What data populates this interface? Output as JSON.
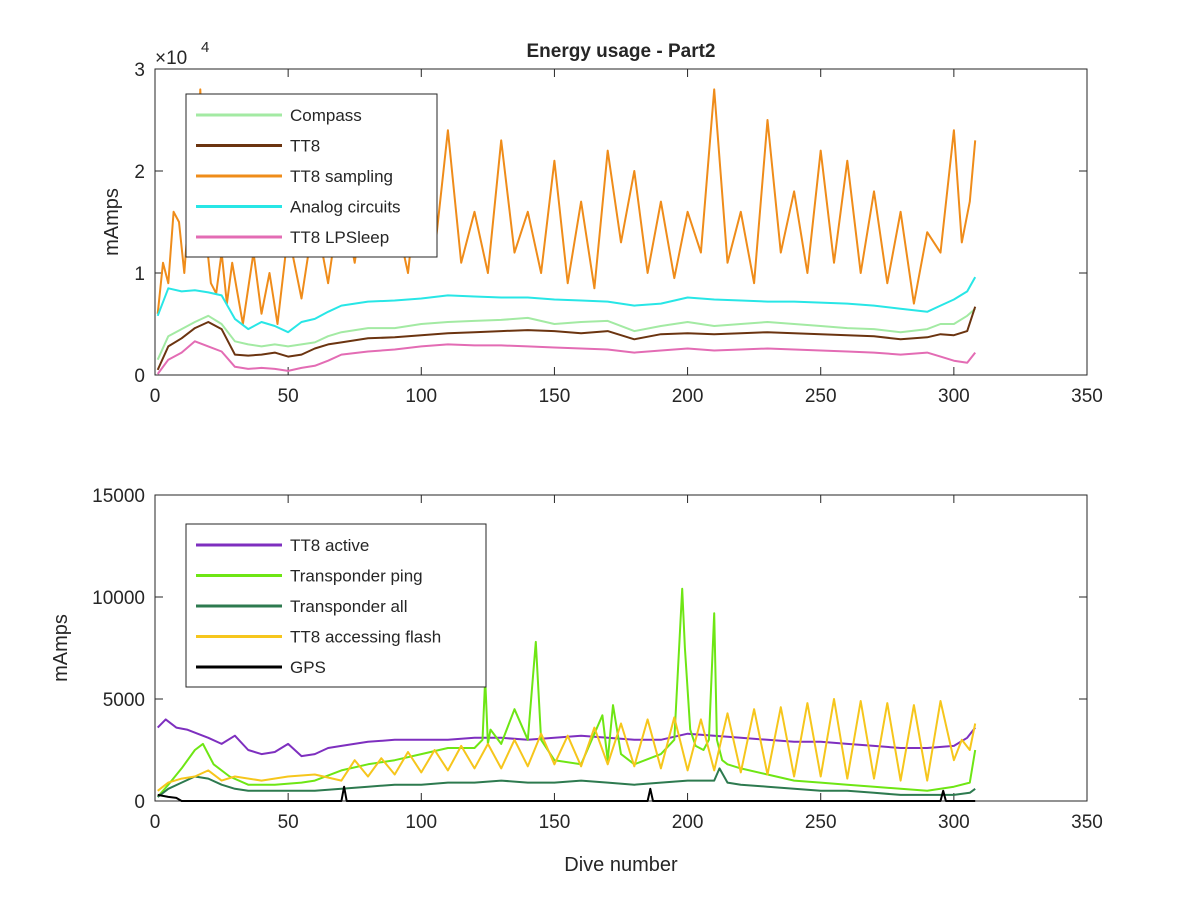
{
  "chart_data": [
    {
      "type": "line",
      "title": "Energy usage - Part2",
      "xlabel": "",
      "ylabel": "mAmps",
      "xlim": [
        0,
        350
      ],
      "ylim": [
        0,
        30000
      ],
      "x_ticks": [
        0,
        50,
        100,
        150,
        200,
        250,
        300,
        350
      ],
      "y_ticks": [
        0,
        10000,
        20000,
        30000
      ],
      "y_tick_labels": [
        "0",
        "1",
        "2",
        "3"
      ],
      "exponent_label": "×10",
      "exponent_power": "4",
      "grid": false,
      "legend_position": "top-left",
      "series": [
        {
          "name": "Compass",
          "color": "#a3eaa3",
          "x": [
            1,
            5,
            10,
            15,
            20,
            25,
            30,
            35,
            40,
            45,
            50,
            55,
            60,
            65,
            70,
            80,
            90,
            100,
            110,
            120,
            130,
            140,
            150,
            160,
            170,
            180,
            190,
            200,
            210,
            220,
            230,
            240,
            250,
            260,
            270,
            280,
            290,
            295,
            300,
            305,
            308
          ],
          "y": [
            1500,
            3800,
            4500,
            5200,
            5800,
            5000,
            3300,
            3000,
            2800,
            3000,
            2800,
            3000,
            3200,
            3800,
            4200,
            4600,
            4600,
            5000,
            5200,
            5300,
            5400,
            5600,
            5000,
            5200,
            5300,
            4300,
            4800,
            5200,
            4800,
            5000,
            5200,
            5000,
            4800,
            4600,
            4500,
            4200,
            4500,
            5000,
            5000,
            5800,
            6500
          ]
        },
        {
          "name": "TT8",
          "color": "#6b3410",
          "x": [
            1,
            5,
            10,
            15,
            20,
            25,
            30,
            35,
            40,
            45,
            50,
            55,
            60,
            65,
            70,
            80,
            90,
            100,
            110,
            120,
            130,
            140,
            150,
            160,
            170,
            180,
            190,
            200,
            210,
            220,
            230,
            240,
            250,
            260,
            270,
            280,
            290,
            295,
            300,
            305,
            308
          ],
          "y": [
            500,
            2800,
            3600,
            4600,
            5200,
            4500,
            2000,
            1900,
            2000,
            2200,
            1800,
            2000,
            2600,
            3000,
            3200,
            3600,
            3700,
            3900,
            4100,
            4200,
            4300,
            4400,
            4300,
            4100,
            4300,
            3500,
            4000,
            4100,
            4000,
            4100,
            4200,
            4100,
            4000,
            3900,
            3800,
            3500,
            3700,
            4000,
            3900,
            4300,
            6700
          ]
        },
        {
          "name": "TT8 sampling",
          "color": "#ef8c1a",
          "x": [
            1,
            3,
            5,
            7,
            9,
            11,
            13,
            15,
            17,
            19,
            21,
            23,
            25,
            27,
            29,
            31,
            33,
            35,
            37,
            40,
            43,
            46,
            50,
            55,
            60,
            65,
            70,
            75,
            80,
            85,
            90,
            95,
            100,
            105,
            110,
            115,
            120,
            125,
            130,
            135,
            140,
            145,
            150,
            155,
            160,
            165,
            170,
            175,
            180,
            185,
            190,
            195,
            200,
            205,
            210,
            215,
            220,
            225,
            230,
            235,
            240,
            245,
            250,
            255,
            260,
            265,
            270,
            275,
            280,
            285,
            290,
            295,
            300,
            303,
            306,
            308
          ],
          "y": [
            6000,
            11000,
            9000,
            16000,
            15000,
            10000,
            17000,
            13000,
            28000,
            14000,
            9000,
            8000,
            12000,
            7000,
            11000,
            8000,
            5000,
            8500,
            12000,
            6000,
            10000,
            5000,
            14000,
            7500,
            16000,
            9000,
            18000,
            11000,
            20000,
            12000,
            16000,
            10000,
            22000,
            12000,
            24000,
            11000,
            16000,
            10000,
            23000,
            12000,
            16000,
            10000,
            21000,
            9000,
            17000,
            8500,
            22000,
            13000,
            20000,
            10000,
            17000,
            9500,
            16000,
            12000,
            28000,
            11000,
            16000,
            9000,
            25000,
            12000,
            18000,
            10000,
            22000,
            11000,
            21000,
            10000,
            18000,
            9000,
            16000,
            7000,
            14000,
            12000,
            24000,
            13000,
            17000,
            23000
          ]
        },
        {
          "name": "Analog circuits",
          "color": "#28e6e6",
          "x": [
            1,
            5,
            10,
            15,
            20,
            25,
            30,
            35,
            40,
            45,
            50,
            55,
            60,
            65,
            70,
            80,
            90,
            100,
            110,
            120,
            130,
            140,
            150,
            160,
            170,
            180,
            190,
            200,
            210,
            220,
            230,
            240,
            250,
            260,
            270,
            280,
            290,
            295,
            300,
            305,
            308
          ],
          "y": [
            5800,
            8500,
            8200,
            8300,
            8100,
            7800,
            5500,
            4500,
            5200,
            4800,
            4200,
            5200,
            5500,
            6200,
            6800,
            7200,
            7300,
            7500,
            7800,
            7700,
            7600,
            7600,
            7400,
            7300,
            7200,
            6800,
            7000,
            7600,
            7400,
            7300,
            7200,
            7200,
            7100,
            7000,
            6800,
            6500,
            6200,
            6800,
            7400,
            8200,
            9600
          ]
        },
        {
          "name": "TT8 LPSleep",
          "color": "#e36cb4",
          "x": [
            1,
            5,
            10,
            15,
            20,
            25,
            30,
            35,
            40,
            45,
            50,
            55,
            60,
            65,
            70,
            80,
            90,
            100,
            110,
            120,
            130,
            140,
            150,
            160,
            170,
            180,
            190,
            200,
            210,
            220,
            230,
            240,
            250,
            260,
            270,
            280,
            290,
            295,
            300,
            305,
            308
          ],
          "y": [
            100,
            1500,
            2200,
            3300,
            2800,
            2300,
            800,
            600,
            700,
            600,
            400,
            700,
            900,
            1400,
            2000,
            2300,
            2500,
            2800,
            3000,
            2900,
            2900,
            2800,
            2700,
            2600,
            2500,
            2200,
            2400,
            2600,
            2400,
            2500,
            2600,
            2500,
            2400,
            2300,
            2200,
            2000,
            2200,
            1800,
            1400,
            1200,
            2200
          ]
        }
      ]
    },
    {
      "type": "line",
      "title": "",
      "xlabel": "Dive number",
      "ylabel": "mAmps",
      "xlim": [
        0,
        350
      ],
      "ylim": [
        0,
        15000
      ],
      "x_ticks": [
        0,
        50,
        100,
        150,
        200,
        250,
        300,
        350
      ],
      "y_ticks": [
        0,
        5000,
        10000,
        15000
      ],
      "y_tick_labels": [
        "0",
        "5000",
        "10000",
        "15000"
      ],
      "grid": false,
      "legend_position": "top-left",
      "series": [
        {
          "name": "TT8 active",
          "color": "#7e2fbf",
          "x": [
            1,
            4,
            8,
            12,
            16,
            20,
            25,
            30,
            35,
            40,
            45,
            50,
            55,
            60,
            65,
            70,
            80,
            90,
            100,
            110,
            120,
            130,
            140,
            150,
            160,
            170,
            180,
            190,
            200,
            210,
            220,
            230,
            240,
            250,
            260,
            270,
            280,
            290,
            300,
            305,
            308
          ],
          "y": [
            3600,
            4000,
            3600,
            3500,
            3300,
            3100,
            2800,
            3200,
            2500,
            2300,
            2400,
            2800,
            2200,
            2300,
            2600,
            2700,
            2900,
            3000,
            3000,
            3000,
            3100,
            3100,
            3000,
            3100,
            3200,
            3100,
            3000,
            3000,
            3300,
            3200,
            3100,
            3000,
            2900,
            2900,
            2800,
            2700,
            2600,
            2600,
            2700,
            3100,
            3600
          ]
        },
        {
          "name": "Transponder ping",
          "color": "#6ee614",
          "x": [
            1,
            5,
            10,
            15,
            18,
            22,
            28,
            35,
            45,
            55,
            60,
            70,
            80,
            90,
            100,
            110,
            120,
            123,
            124,
            125,
            126,
            130,
            135,
            140,
            143,
            145,
            150,
            160,
            168,
            170,
            172,
            175,
            180,
            190,
            195,
            198,
            199,
            201,
            203,
            206,
            208,
            210,
            211,
            213,
            215,
            220,
            230,
            240,
            250,
            260,
            270,
            280,
            290,
            300,
            306,
            308
          ],
          "y": [
            200,
            800,
            1600,
            2500,
            2800,
            1800,
            1200,
            800,
            800,
            900,
            1000,
            1500,
            1800,
            2000,
            2300,
            2600,
            2600,
            3000,
            6000,
            2800,
            3500,
            2800,
            4500,
            3000,
            7800,
            3000,
            2000,
            1800,
            4200,
            2000,
            4700,
            2300,
            1800,
            2300,
            3000,
            10400,
            7500,
            3500,
            2700,
            2500,
            3000,
            9200,
            3000,
            2000,
            1800,
            1600,
            1300,
            1000,
            900,
            800,
            700,
            600,
            500,
            700,
            900,
            2500
          ]
        },
        {
          "name": "Transponder all",
          "color": "#2d7a4f",
          "x": [
            1,
            5,
            10,
            15,
            20,
            25,
            30,
            35,
            40,
            50,
            60,
            70,
            80,
            90,
            100,
            110,
            120,
            130,
            140,
            150,
            160,
            170,
            180,
            190,
            200,
            210,
            212,
            215,
            220,
            230,
            240,
            250,
            260,
            270,
            280,
            290,
            300,
            306,
            308
          ],
          "y": [
            200,
            600,
            900,
            1200,
            1100,
            800,
            600,
            500,
            500,
            500,
            500,
            600,
            700,
            800,
            800,
            900,
            900,
            1000,
            900,
            900,
            1000,
            900,
            800,
            900,
            1000,
            1000,
            1600,
            900,
            800,
            700,
            600,
            500,
            500,
            400,
            300,
            300,
            300,
            400,
            600
          ]
        },
        {
          "name": "TT8 accessing flash",
          "color": "#f6c61c",
          "x": [
            1,
            5,
            10,
            15,
            20,
            25,
            30,
            40,
            50,
            60,
            70,
            75,
            80,
            85,
            90,
            95,
            100,
            105,
            110,
            115,
            120,
            125,
            130,
            135,
            140,
            145,
            150,
            155,
            160,
            165,
            170,
            175,
            180,
            185,
            190,
            195,
            200,
            205,
            210,
            215,
            220,
            225,
            230,
            235,
            240,
            245,
            250,
            255,
            260,
            265,
            270,
            275,
            280,
            285,
            290,
            295,
            300,
            303,
            306,
            308
          ],
          "y": [
            500,
            900,
            1100,
            1200,
            1500,
            1000,
            1200,
            1000,
            1200,
            1300,
            1000,
            2000,
            1200,
            2100,
            1300,
            2400,
            1400,
            2500,
            1500,
            2700,
            1600,
            2800,
            1600,
            3000,
            1700,
            3300,
            1800,
            3200,
            1700,
            3600,
            1800,
            3800,
            1700,
            4000,
            1600,
            4100,
            1500,
            4000,
            1500,
            4300,
            1400,
            4500,
            1300,
            4600,
            1200,
            4800,
            1200,
            5000,
            1100,
            4900,
            1100,
            4800,
            1000,
            4700,
            1000,
            4900,
            2000,
            3000,
            2500,
            3800
          ]
        },
        {
          "name": "GPS",
          "color": "#000000",
          "x": [
            1,
            5,
            8,
            10,
            12,
            15,
            20,
            30,
            40,
            50,
            60,
            70,
            71,
            72,
            80,
            90,
            100,
            110,
            120,
            130,
            140,
            150,
            160,
            170,
            180,
            185,
            186,
            187,
            190,
            200,
            210,
            220,
            230,
            240,
            250,
            260,
            270,
            280,
            290,
            295,
            296,
            297,
            300,
            306,
            308
          ],
          "y": [
            300,
            200,
            150,
            0,
            0,
            0,
            0,
            0,
            0,
            0,
            0,
            0,
            700,
            0,
            0,
            0,
            0,
            0,
            0,
            0,
            0,
            0,
            0,
            0,
            0,
            0,
            600,
            0,
            0,
            0,
            0,
            0,
            0,
            0,
            0,
            0,
            0,
            0,
            0,
            0,
            500,
            0,
            0,
            0,
            0
          ]
        }
      ]
    }
  ]
}
